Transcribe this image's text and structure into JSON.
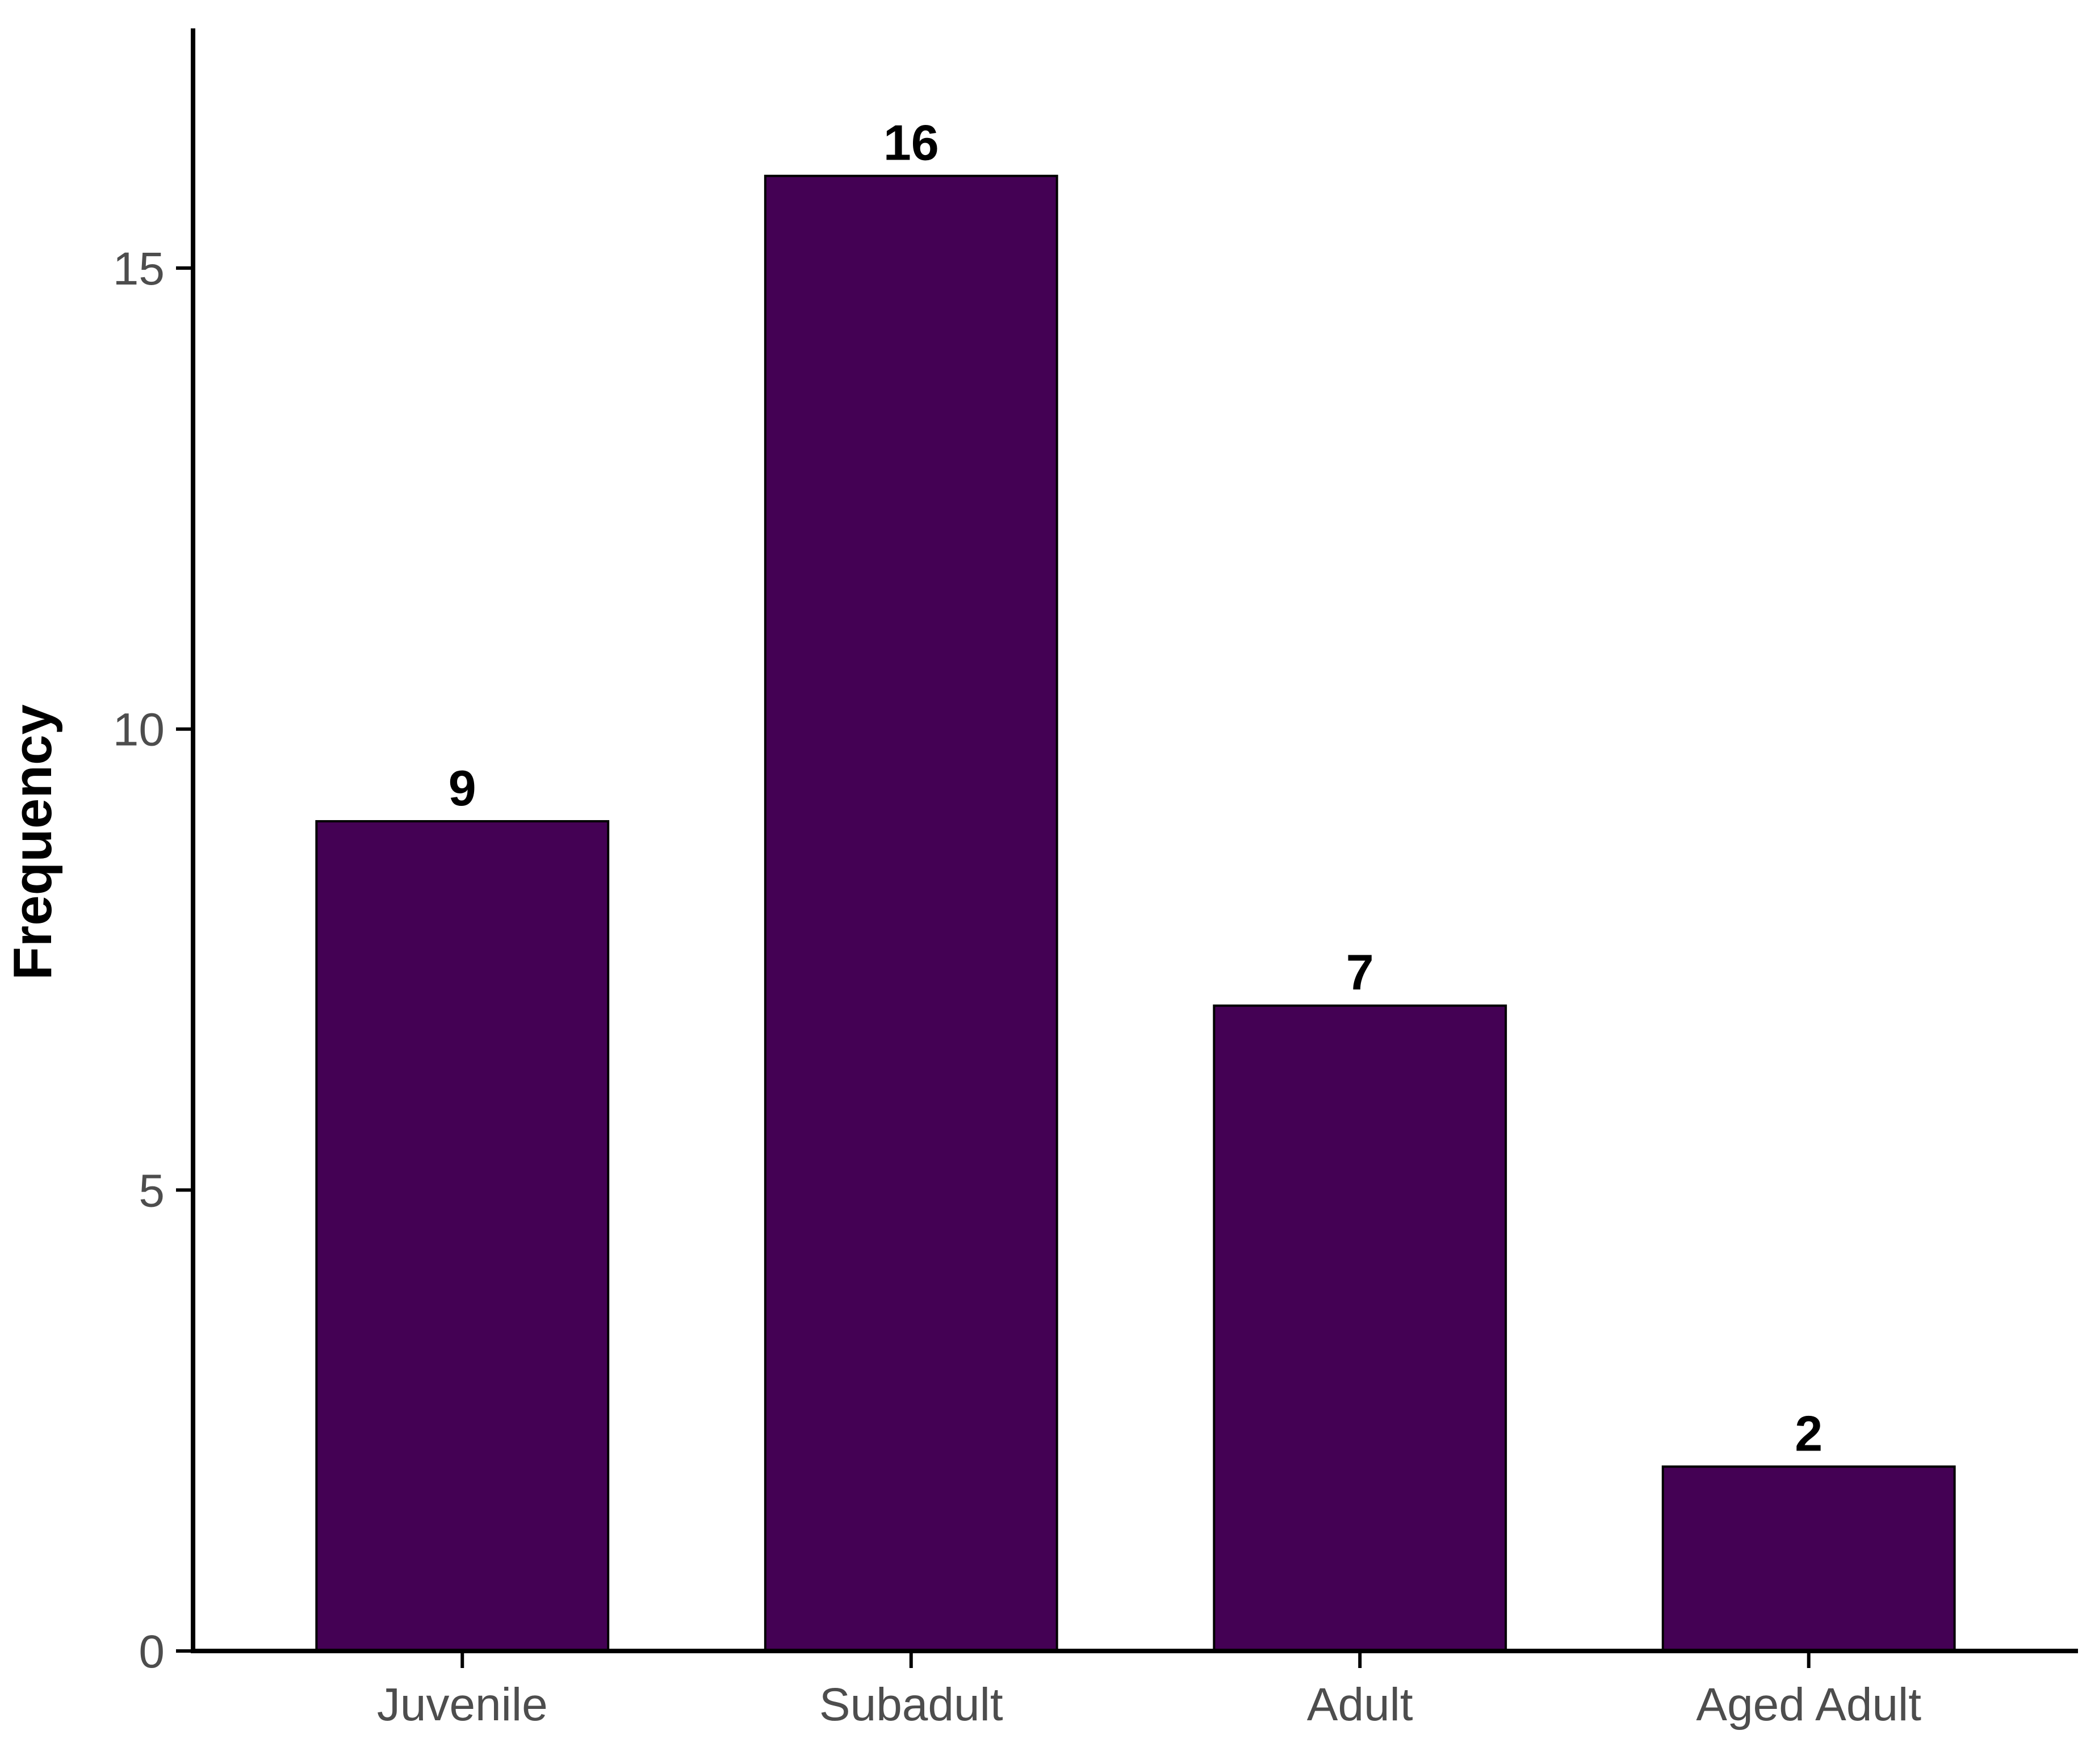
{
  "chart_data": {
    "type": "bar",
    "categories": [
      "Juvenile",
      "Subadult",
      "Adult",
      "Aged Adult"
    ],
    "values": [
      9,
      16,
      7,
      2
    ],
    "data_labels": [
      "9",
      "16",
      "7",
      "2"
    ],
    "xlabel": "",
    "ylabel": "Frequency",
    "ylim": [
      0,
      17.6
    ],
    "yticks": [
      0,
      5,
      10,
      15
    ],
    "ytick_labels": [
      "0",
      "5",
      "10",
      "15"
    ],
    "grid": false,
    "legend": "none",
    "bar_color": "#440154",
    "bar_outline_color": "#000000"
  }
}
